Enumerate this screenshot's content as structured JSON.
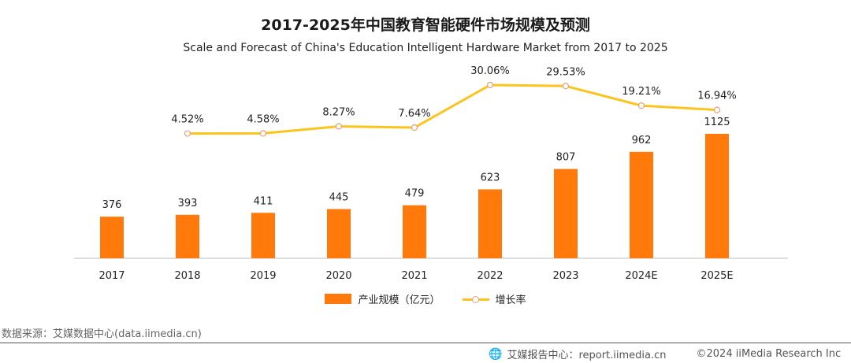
{
  "header": {
    "title": "2017-2025年中国教育智能硬件市场规模及预测",
    "subtitle": "Scale and Forecast of China's Education Intelligent Hardware Market from 2017 to 2025"
  },
  "colors": {
    "bar": "#ff7a0b",
    "line": "#fcc41d",
    "marker_stroke": "#e8a07a",
    "axis": "#bbbbbb"
  },
  "chart_data": {
    "type": "bar",
    "title": "2017-2025年中国教育智能硬件市场规模及预测",
    "categories": [
      "2017",
      "2018",
      "2019",
      "2020",
      "2021",
      "2022",
      "2023",
      "2024E",
      "2025E"
    ],
    "series": [
      {
        "name": "产业规模（亿元）",
        "type": "bar",
        "values": [
          376,
          393,
          411,
          445,
          479,
          623,
          807,
          962,
          1125
        ],
        "labels": [
          "376",
          "393",
          "411",
          "445",
          "479",
          "623",
          "807",
          "962",
          "1125"
        ]
      },
      {
        "name": "增长率",
        "type": "line",
        "values": [
          null,
          4.52,
          4.58,
          8.27,
          7.64,
          30.06,
          29.53,
          19.21,
          16.94
        ],
        "labels": [
          "",
          "4.52%",
          "4.58%",
          "8.27%",
          "7.64%",
          "30.06%",
          "29.53%",
          "19.21%",
          "16.94%"
        ]
      }
    ],
    "xlabel": "",
    "ylabel": "",
    "grid": false,
    "legend": "bottom"
  },
  "legend": {
    "bar_label": "产业规模（亿元）",
    "line_label": "增长率"
  },
  "source": "数据来源：艾媒数据中心(data.iimedia.cn)",
  "footer": {
    "report": "艾媒报告中心：report.iimedia.cn",
    "copyright": "©2024  iiMedia Research  Inc"
  }
}
